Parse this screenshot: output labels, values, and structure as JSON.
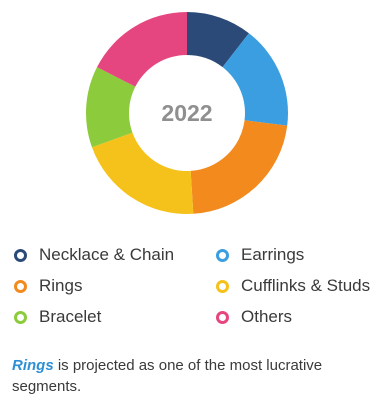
{
  "chart_data": {
    "type": "pie",
    "title": "",
    "center_label": "2022",
    "hole": true,
    "categories": [
      "Necklace & Chain",
      "Earrings",
      "Rings",
      "Cufflinks & Studs",
      "Bracelet",
      "Others"
    ],
    "values": [
      10.5,
      16.5,
      22,
      20.5,
      13,
      17.5
    ],
    "unit": "%",
    "colors": [
      "#2c4a78",
      "#3a9ee0",
      "#f28a1e",
      "#f5c21b",
      "#8ccb3c",
      "#e6467f"
    ],
    "legend_placement": "bottom",
    "grid": false
  },
  "legend": {
    "items": [
      {
        "label": "Necklace & Chain",
        "color": "#2c4a78"
      },
      {
        "label": "Earrings",
        "color": "#3a9ee0"
      },
      {
        "label": "Rings",
        "color": "#f28a1e"
      },
      {
        "label": "Cufflinks & Studs",
        "color": "#f5c21b"
      },
      {
        "label": "Bracelet",
        "color": "#8ccb3c"
      },
      {
        "label": "Others",
        "color": "#e6467f"
      }
    ]
  },
  "caption": {
    "highlight": "Rings",
    "text": " is projected as one of the most lucrative segments."
  }
}
